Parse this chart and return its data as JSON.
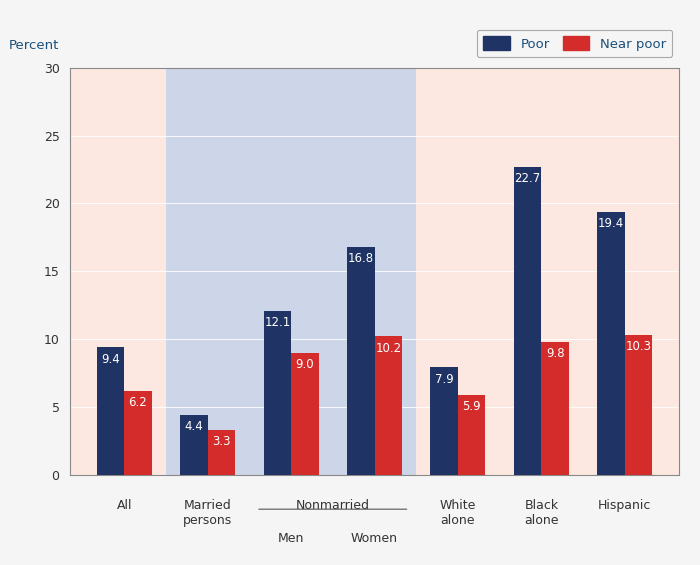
{
  "categories": [
    "All",
    "Married\npersons",
    "Men",
    "Women",
    "White\nalone",
    "Black\nalone",
    "Hispanic"
  ],
  "poor_values": [
    9.4,
    4.4,
    12.1,
    16.8,
    7.9,
    22.7,
    19.4
  ],
  "nearpoor_values": [
    6.2,
    3.3,
    9.0,
    10.2,
    5.9,
    9.8,
    10.3
  ],
  "poor_color": "#1f3464",
  "nearpoor_color": "#d42b2b",
  "bg_pink": "#fce8e0",
  "bg_blue": "#cdd5e8",
  "bg_outer": "#f5f5f5",
  "ylabel_color": "#1a4f7a",
  "tick_color": "#333333",
  "ylim": [
    0,
    30
  ],
  "yticks": [
    0,
    5,
    10,
    15,
    20,
    25,
    30
  ],
  "legend_poor": "Poor",
  "legend_nearpoor": "Near poor",
  "bar_width": 0.33,
  "xlim_left": -0.65,
  "xlim_right": 6.65
}
